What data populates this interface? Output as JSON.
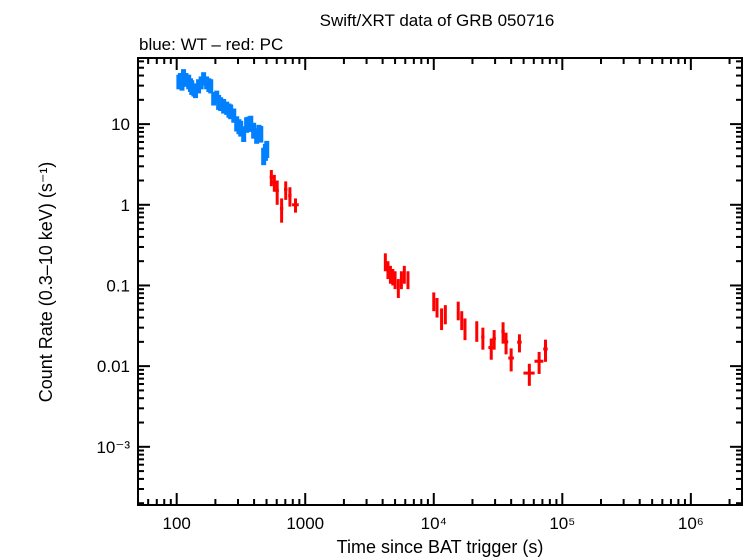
{
  "chart_data": {
    "type": "scatter",
    "title": "Swift/XRT data of GRB 050716",
    "subtitle": "blue: WT – red: PC",
    "xlabel": "Time since BAT trigger (s)",
    "ylabel": "Count Rate (0.3–10 keV) (s⁻¹)",
    "xscale": "log",
    "yscale": "log",
    "xlim": [
      50,
      2500000
    ],
    "ylim": [
      0.00019,
      66
    ],
    "grid": false,
    "x_ticks": [
      {
        "value": 100,
        "label": "100"
      },
      {
        "value": 1000,
        "label": "1000"
      },
      {
        "value": 10000,
        "label": "10⁴"
      },
      {
        "value": 100000,
        "label": "10⁵"
      },
      {
        "value": 1000000,
        "label": "10⁶"
      }
    ],
    "y_ticks": [
      {
        "value": 10,
        "label": "10"
      },
      {
        "value": 1,
        "label": "1"
      },
      {
        "value": 0.1,
        "label": "0.1"
      },
      {
        "value": 0.01,
        "label": "0.01"
      },
      {
        "value": 0.001,
        "label": "10⁻³"
      }
    ],
    "series": [
      {
        "name": "WT",
        "color": "#0080ff",
        "points_format": [
          "time",
          "time_err_fraction",
          "rate",
          "rate_err"
        ],
        "points": [
          [
            104,
            0.02,
            34,
            7
          ],
          [
            107,
            0.02,
            36,
            7
          ],
          [
            110,
            0.02,
            33,
            7
          ],
          [
            113,
            0.02,
            40,
            8
          ],
          [
            118,
            0.02,
            36,
            7
          ],
          [
            124,
            0.02,
            34,
            7
          ],
          [
            128,
            0.02,
            31,
            6
          ],
          [
            131,
            0.02,
            29,
            6
          ],
          [
            136,
            0.02,
            27,
            5
          ],
          [
            140,
            0.02,
            26,
            5
          ],
          [
            148,
            0.02,
            30,
            6
          ],
          [
            155,
            0.02,
            33,
            6
          ],
          [
            162,
            0.02,
            37,
            7
          ],
          [
            171,
            0.02,
            33,
            6
          ],
          [
            178,
            0.02,
            31,
            6
          ],
          [
            184,
            0.02,
            30,
            6
          ],
          [
            194,
            0.02,
            21,
            4
          ],
          [
            205,
            0.02,
            22,
            4
          ],
          [
            212,
            0.02,
            19,
            4
          ],
          [
            220,
            0.02,
            18,
            3.5
          ],
          [
            232,
            0.02,
            17,
            3.5
          ],
          [
            245,
            0.02,
            16,
            3
          ],
          [
            255,
            0.02,
            15,
            3
          ],
          [
            263,
            0.02,
            14.5,
            3
          ],
          [
            278,
            0.02,
            13,
            2.6
          ],
          [
            293,
            0.02,
            10.3,
            2.2
          ],
          [
            305,
            0.02,
            9.5,
            2
          ],
          [
            315,
            0.02,
            9,
            2
          ],
          [
            332,
            0.02,
            7.7,
            1.7
          ],
          [
            350,
            0.02,
            10,
            2.2
          ],
          [
            365,
            0.02,
            10.2,
            2.2
          ],
          [
            377,
            0.02,
            10.5,
            2.2
          ],
          [
            397,
            0.02,
            8.5,
            1.9
          ],
          [
            419,
            0.02,
            7.3,
            1.6
          ],
          [
            436,
            0.02,
            8,
            1.8
          ],
          [
            451,
            0.02,
            7.7,
            1.8
          ],
          [
            475,
            0.02,
            4.1,
            1.0
          ],
          [
            490,
            0.02,
            4.6,
            1.1
          ],
          [
            502,
            0.02,
            5,
            1.2
          ]
        ]
      },
      {
        "name": "PC",
        "color": "#ff0000",
        "points_format": [
          "time",
          "time_err_fraction",
          "rate",
          "rate_err"
        ],
        "points": [
          [
            545,
            0.03,
            2.2,
            0.5
          ],
          [
            575,
            0.03,
            1.9,
            0.45
          ],
          [
            605,
            0.03,
            1.5,
            0.5
          ],
          [
            655,
            0.03,
            0.9,
            0.3
          ],
          [
            705,
            0.03,
            1.55,
            0.4
          ],
          [
            760,
            0.03,
            1.3,
            0.35
          ],
          [
            840,
            0.06,
            1.0,
            0.2
          ],
          [
            4200,
            0.02,
            0.2,
            0.05
          ],
          [
            4400,
            0.02,
            0.16,
            0.04
          ],
          [
            4600,
            0.02,
            0.14,
            0.035
          ],
          [
            4800,
            0.02,
            0.13,
            0.03
          ],
          [
            5000,
            0.02,
            0.12,
            0.03
          ],
          [
            5300,
            0.02,
            0.095,
            0.025
          ],
          [
            5600,
            0.02,
            0.12,
            0.03
          ],
          [
            5900,
            0.02,
            0.14,
            0.035
          ],
          [
            6300,
            0.02,
            0.12,
            0.03
          ],
          [
            10000,
            0.02,
            0.065,
            0.017
          ],
          [
            10600,
            0.02,
            0.055,
            0.015
          ],
          [
            11500,
            0.02,
            0.04,
            0.012
          ],
          [
            12300,
            0.02,
            0.045,
            0.012
          ],
          [
            15500,
            0.02,
            0.05,
            0.013
          ],
          [
            16500,
            0.02,
            0.038,
            0.01
          ],
          [
            17500,
            0.02,
            0.03,
            0.009
          ],
          [
            21600,
            0.02,
            0.028,
            0.008
          ],
          [
            24100,
            0.03,
            0.023,
            0.007
          ],
          [
            28000,
            0.05,
            0.017,
            0.005
          ],
          [
            29500,
            0.03,
            0.022,
            0.006
          ],
          [
            34600,
            0.03,
            0.027,
            0.008
          ],
          [
            36500,
            0.04,
            0.02,
            0.006
          ],
          [
            40000,
            0.05,
            0.0126,
            0.004
          ],
          [
            46400,
            0.04,
            0.0198,
            0.005
          ],
          [
            55400,
            0.1,
            0.0082,
            0.0025
          ],
          [
            66000,
            0.08,
            0.0115,
            0.0035
          ],
          [
            74000,
            0.04,
            0.0163,
            0.005
          ]
        ]
      }
    ]
  }
}
